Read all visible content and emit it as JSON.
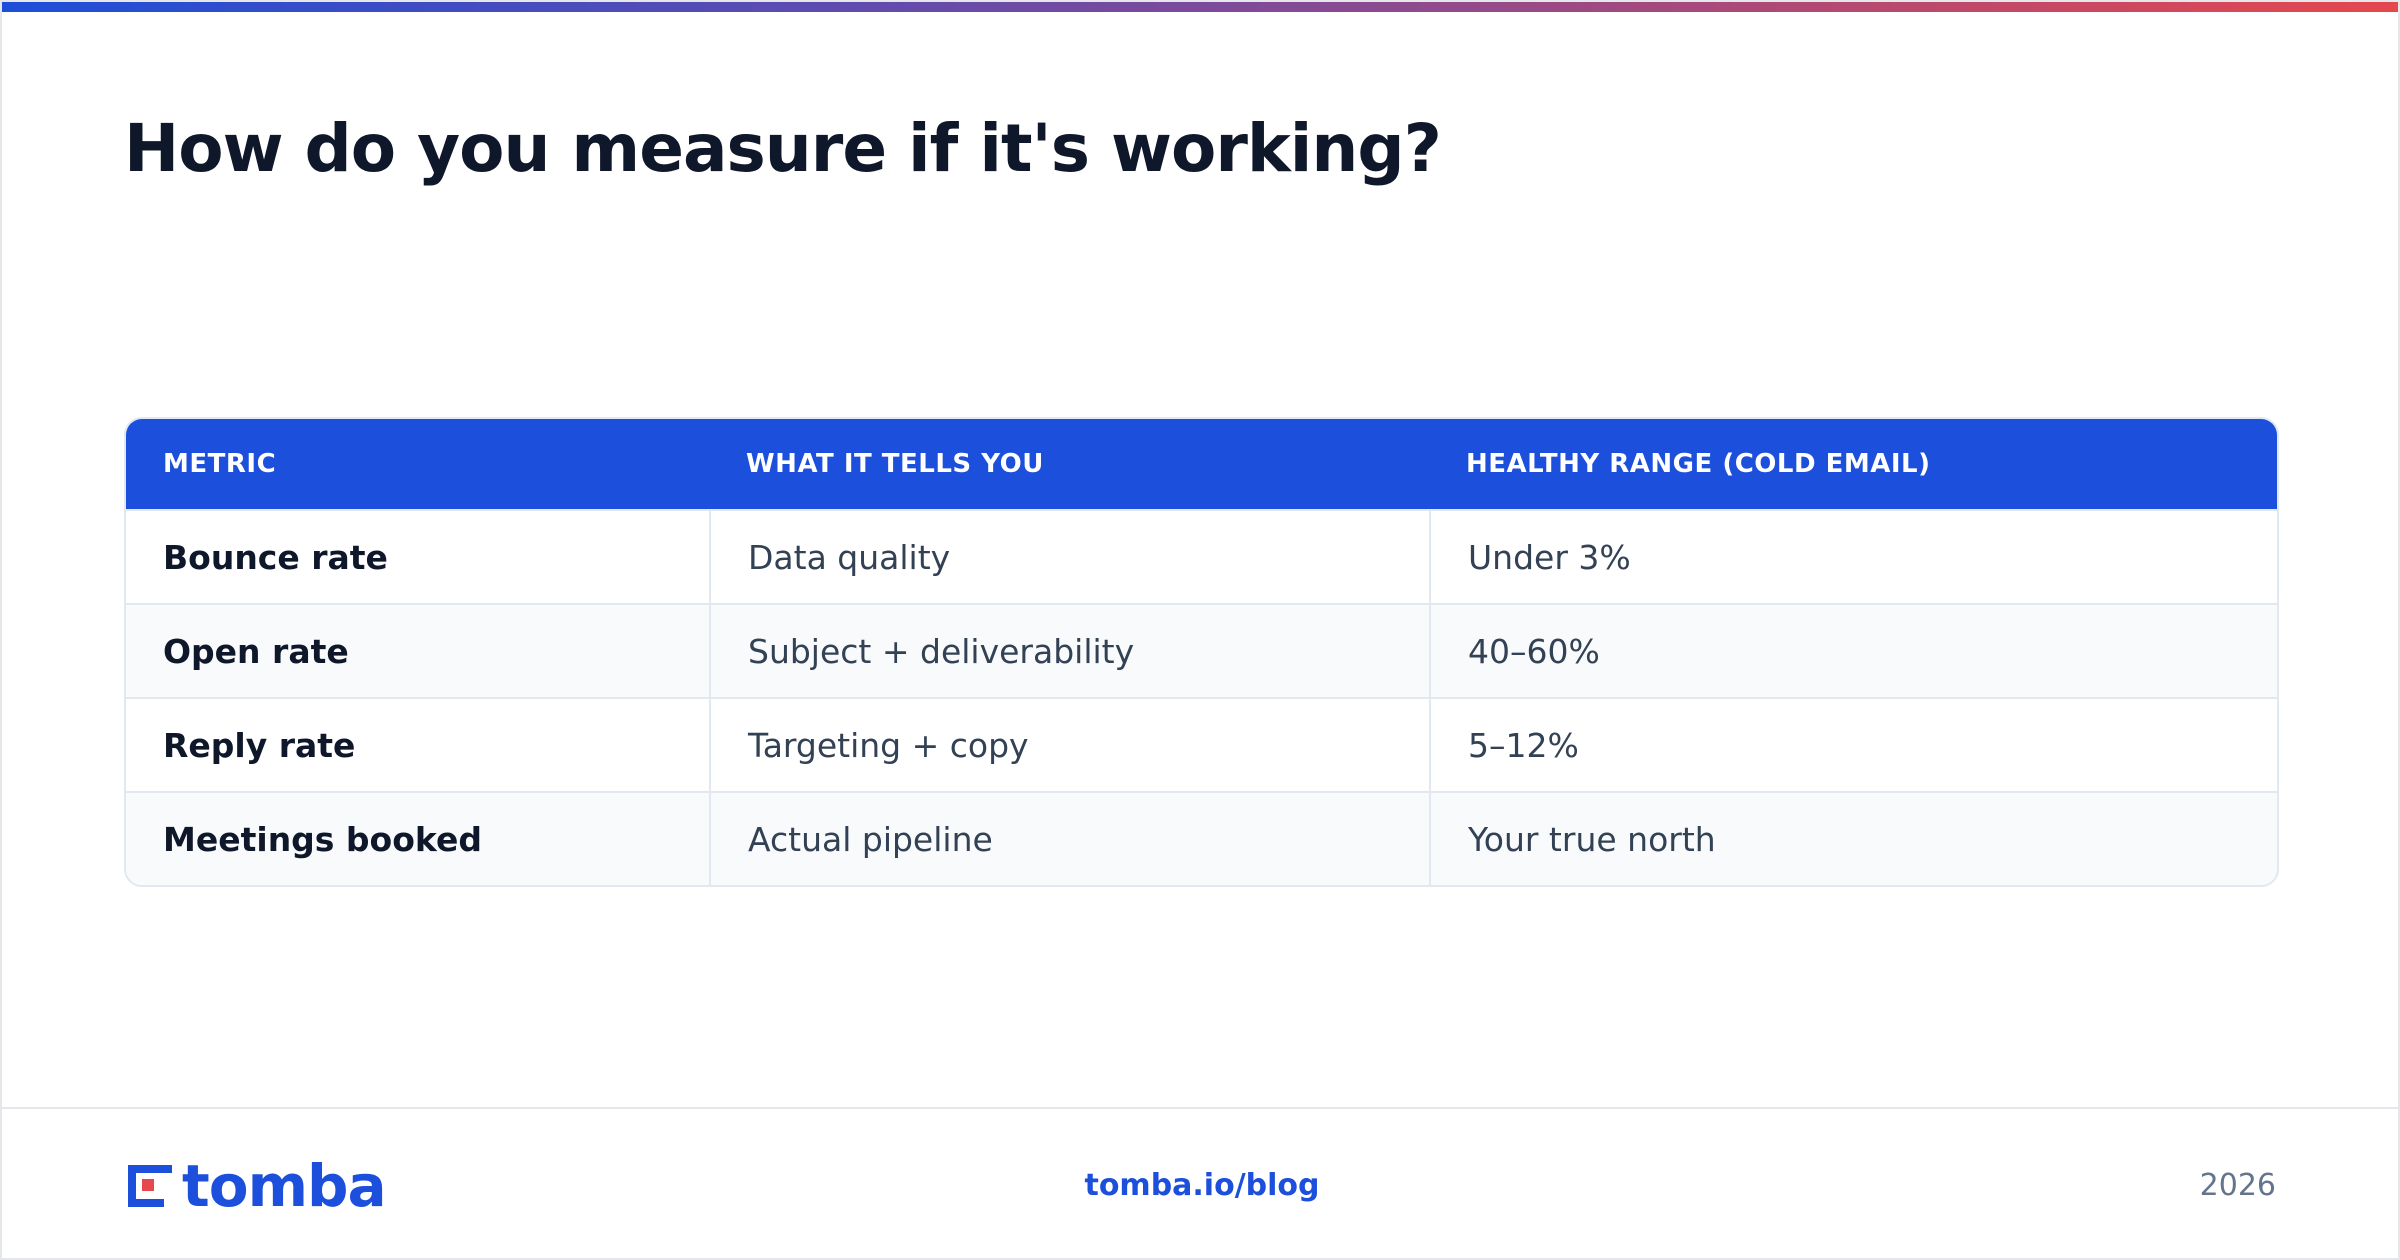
{
  "header": {
    "title": "How do you measure if it's working?"
  },
  "table": {
    "columns": [
      "METRIC",
      "WHAT IT TELLS YOU",
      "HEALTHY RANGE (COLD EMAIL)"
    ],
    "rows": [
      [
        "Bounce rate",
        "Data quality",
        "Under 3%"
      ],
      [
        "Open rate",
        "Subject + deliverability",
        "40–60%"
      ],
      [
        "Reply rate",
        "Targeting + copy",
        "5–12%"
      ],
      [
        "Meetings booked",
        "Actual pipeline",
        "Your true north"
      ]
    ]
  },
  "footer": {
    "logo": "tomba",
    "link": "tomba.io/blog",
    "year": "2026"
  }
}
